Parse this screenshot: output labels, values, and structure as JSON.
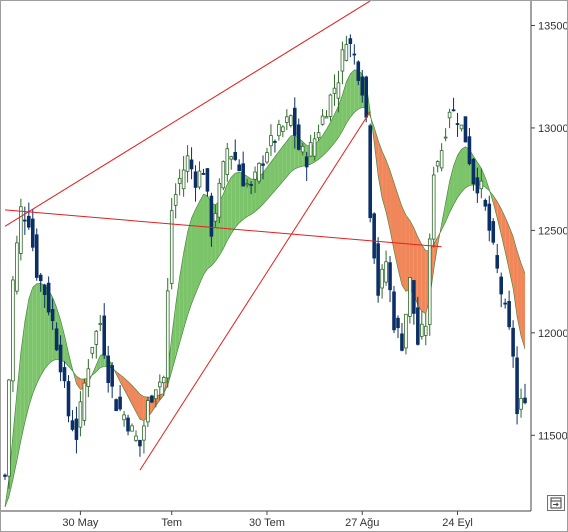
{
  "colors": {
    "up_candle": "#2f6a2a",
    "down_candle": "#0b2f66",
    "ribbon_bull": "#7cc46a",
    "ribbon_bear": "#f0875a",
    "trend_line": "#e02020",
    "axis": "#444444"
  },
  "icons": {
    "corner_button": "export-icon"
  },
  "chart_data": {
    "type": "candlestick",
    "title": "",
    "xlabel": "",
    "ylabel": "",
    "y_axis_position": "right",
    "ylim": [
      11150,
      13600
    ],
    "yticks": [
      11500,
      12000,
      12500,
      13000,
      13500
    ],
    "ytick_labels": [
      "11500",
      "12000",
      "12500",
      "13000",
      "13500"
    ],
    "x_tick_labels": [
      {
        "label": "30 May",
        "index": 19
      },
      {
        "label": "Tem",
        "index": 42
      },
      {
        "label": "30 Tem",
        "index": 66
      },
      {
        "label": "27 Ağu",
        "index": 90
      },
      {
        "label": "24 Eyl",
        "index": 114
      }
    ],
    "n_bars": 132,
    "close_anchors": [
      [
        0,
        11300
      ],
      [
        2,
        12250
      ],
      [
        4,
        12600
      ],
      [
        6,
        12550
      ],
      [
        8,
        12300
      ],
      [
        10,
        12200
      ],
      [
        12,
        12050
      ],
      [
        14,
        11850
      ],
      [
        16,
        11600
      ],
      [
        18,
        11500
      ],
      [
        20,
        11750
      ],
      [
        22,
        11950
      ],
      [
        24,
        12050
      ],
      [
        26,
        11800
      ],
      [
        28,
        11650
      ],
      [
        30,
        11600
      ],
      [
        32,
        11520
      ],
      [
        34,
        11450
      ],
      [
        36,
        11650
      ],
      [
        38,
        11750
      ],
      [
        40,
        11780
      ],
      [
        42,
        12600
      ],
      [
        44,
        12750
      ],
      [
        46,
        12850
      ],
      [
        48,
        12750
      ],
      [
        50,
        12800
      ],
      [
        52,
        12500
      ],
      [
        54,
        12700
      ],
      [
        56,
        12900
      ],
      [
        58,
        12850
      ],
      [
        60,
        12750
      ],
      [
        62,
        12700
      ],
      [
        64,
        12800
      ],
      [
        66,
        12900
      ],
      [
        68,
        12950
      ],
      [
        70,
        13000
      ],
      [
        72,
        13050
      ],
      [
        74,
        12900
      ],
      [
        76,
        12850
      ],
      [
        78,
        12950
      ],
      [
        80,
        13050
      ],
      [
        82,
        13150
      ],
      [
        84,
        13250
      ],
      [
        86,
        13450
      ],
      [
        88,
        13350
      ],
      [
        90,
        13200
      ],
      [
        91,
        13050
      ],
      [
        92,
        12600
      ],
      [
        94,
        12200
      ],
      [
        96,
        12350
      ],
      [
        98,
        12050
      ],
      [
        100,
        11950
      ],
      [
        102,
        12250
      ],
      [
        104,
        11950
      ],
      [
        106,
        12050
      ],
      [
        108,
        12800
      ],
      [
        110,
        12900
      ],
      [
        112,
        13100
      ],
      [
        114,
        13050
      ],
      [
        116,
        12950
      ],
      [
        118,
        12750
      ],
      [
        120,
        12700
      ],
      [
        122,
        12500
      ],
      [
        124,
        12300
      ],
      [
        126,
        12100
      ],
      [
        128,
        11900
      ],
      [
        129,
        11600
      ],
      [
        130,
        11650
      ],
      [
        131,
        11700
      ]
    ],
    "ribbon": {
      "fast_span": 8,
      "slow_span": 24,
      "bull_color_key": "ribbon_bull",
      "bear_color_key": "ribbon_bear"
    },
    "trend_lines": [
      {
        "from": [
          0,
          12520
        ],
        "to": [
          92,
          13620
        ]
      },
      {
        "from": [
          0,
          12600
        ],
        "to": [
          110,
          12420
        ]
      },
      {
        "from": [
          34,
          11330
        ],
        "to": [
          92,
          13080
        ]
      }
    ]
  }
}
